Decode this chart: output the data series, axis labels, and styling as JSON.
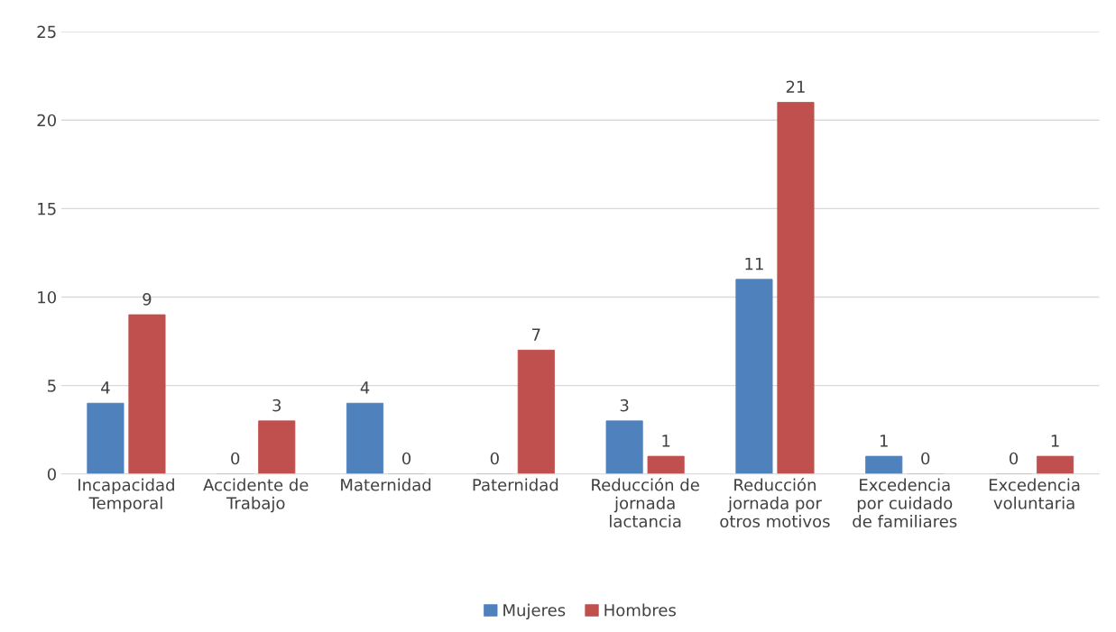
{
  "chart_data": {
    "type": "bar",
    "categories": [
      "Incapacidad Temporal",
      "Accidente de Trabajo",
      "Maternidad",
      "Paternidad",
      "Reducción de jornada lactancia",
      "Reducción jornada por otros motivos",
      "Excedencia por cuidado de familiares",
      "Excedencia voluntaria"
    ],
    "series": [
      {
        "name": "Mujeres",
        "color": "#4f81bd",
        "values": [
          4,
          0,
          4,
          0,
          3,
          11,
          1,
          0
        ]
      },
      {
        "name": "Hombres",
        "color": "#c0504d",
        "values": [
          9,
          3,
          0,
          7,
          1,
          21,
          0,
          1
        ]
      }
    ],
    "ylim": [
      0,
      25
    ],
    "yticks": [
      0,
      5,
      10,
      15,
      20,
      25
    ],
    "grid": "y",
    "legend": "bottom",
    "data_labels": true
  }
}
